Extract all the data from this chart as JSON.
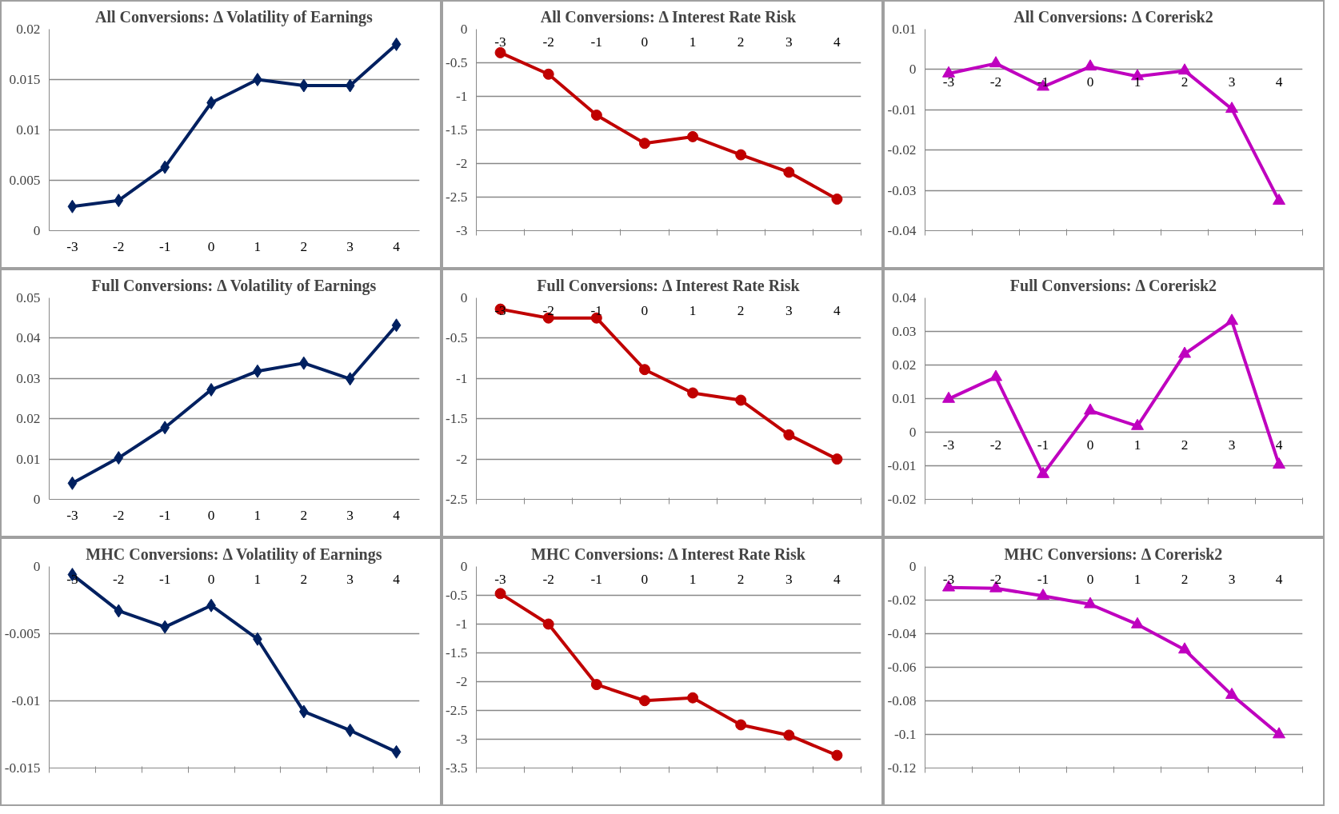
{
  "chart_data": [
    {
      "type": "line",
      "title": "All Conversions: Δ Volatility of Earnings",
      "categories": [
        "-3",
        "-2",
        "-1",
        "0",
        "1",
        "2",
        "3",
        "4"
      ],
      "series": [
        {
          "color": "#002060",
          "values": [
            0.0024,
            0.003,
            0.0063,
            0.0127,
            0.015,
            0.0144,
            0.0144,
            0.0185
          ]
        }
      ],
      "ylim": [
        0,
        0.02
      ],
      "yticks": [
        0,
        0.005,
        0.01,
        0.015,
        0.02
      ],
      "grid": "y",
      "marker": "diamond"
    },
    {
      "type": "line",
      "title": "All Conversions: Δ Interest Rate Risk",
      "categories": [
        "-3",
        "-2",
        "-1",
        "0",
        "1",
        "2",
        "3",
        "4"
      ],
      "series": [
        {
          "color": "#c00000",
          "values": [
            -0.35,
            -0.67,
            -1.28,
            -1.7,
            -1.6,
            -1.87,
            -2.13,
            -2.53
          ]
        }
      ],
      "ylim": [
        -3,
        0
      ],
      "yticks": [
        -3,
        -2.5,
        -2,
        -1.5,
        -1,
        -0.5,
        0
      ],
      "grid": "y",
      "marker": "circle"
    },
    {
      "type": "line",
      "title": "All Conversions: Δ Corerisk2",
      "categories": [
        "-3",
        "-2",
        "-1",
        "0",
        "1",
        "2",
        "3",
        "4"
      ],
      "series": [
        {
          "color": "#bf00bf",
          "values": [
            -0.001,
            0.0015,
            -0.0043,
            0.0007,
            -0.0017,
            -0.0003,
            -0.0098,
            -0.0326
          ]
        }
      ],
      "ylim": [
        -0.04,
        0.01
      ],
      "yticks": [
        -0.04,
        -0.03,
        -0.02,
        -0.01,
        0,
        0.01
      ],
      "grid": "y",
      "marker": "triangle"
    },
    {
      "type": "line",
      "title": "Full Conversions: Δ Volatility of Earnings",
      "categories": [
        "-3",
        "-2",
        "-1",
        "0",
        "1",
        "2",
        "3",
        "4"
      ],
      "series": [
        {
          "color": "#002060",
          "values": [
            0.004,
            0.0103,
            0.0178,
            0.0272,
            0.0318,
            0.0338,
            0.0299,
            0.0432
          ]
        }
      ],
      "ylim": [
        0,
        0.05
      ],
      "yticks": [
        0,
        0.01,
        0.02,
        0.03,
        0.04,
        0.05
      ],
      "grid": "y",
      "marker": "diamond"
    },
    {
      "type": "line",
      "title": "Full Conversions: Δ Interest Rate Risk",
      "categories": [
        "-3",
        "-2",
        "-1",
        "0",
        "1",
        "2",
        "3",
        "4"
      ],
      "series": [
        {
          "color": "#c00000",
          "values": [
            -0.14,
            -0.25,
            -0.25,
            -0.89,
            -1.18,
            -1.27,
            -1.7,
            -2.0
          ]
        }
      ],
      "ylim": [
        -2.5,
        0
      ],
      "yticks": [
        -2.5,
        -2,
        -1.5,
        -1,
        -0.5,
        0
      ],
      "grid": "y",
      "marker": "circle"
    },
    {
      "type": "line",
      "title": "Full Conversions: Δ Corerisk2",
      "categories": [
        "-3",
        "-2",
        "-1",
        "0",
        "1",
        "2",
        "3",
        "4"
      ],
      "series": [
        {
          "color": "#bf00bf",
          "values": [
            0.0099,
            0.0164,
            -0.0125,
            0.0064,
            0.0018,
            0.0233,
            0.0331,
            -0.0097
          ]
        }
      ],
      "ylim": [
        -0.02,
        0.04
      ],
      "yticks": [
        -0.02,
        -0.01,
        0,
        0.01,
        0.02,
        0.03,
        0.04
      ],
      "grid": "y",
      "marker": "triangle"
    },
    {
      "type": "line",
      "title": "MHC Conversions: Δ Volatility of Earnings",
      "categories": [
        "-3",
        "-2",
        "-1",
        "0",
        "1",
        "2",
        "3",
        "4"
      ],
      "series": [
        {
          "color": "#002060",
          "values": [
            -0.0006,
            -0.0033,
            -0.0045,
            -0.0029,
            -0.0054,
            -0.0108,
            -0.0122,
            -0.0138
          ]
        }
      ],
      "ylim": [
        -0.015,
        0
      ],
      "yticks": [
        -0.015,
        -0.01,
        -0.005,
        0
      ],
      "grid": "y",
      "marker": "diamond"
    },
    {
      "type": "line",
      "title": "MHC Conversions: Δ Interest Rate Risk",
      "categories": [
        "-3",
        "-2",
        "-1",
        "0",
        "1",
        "2",
        "3",
        "4"
      ],
      "series": [
        {
          "color": "#c00000",
          "values": [
            -0.47,
            -1.0,
            -2.05,
            -2.33,
            -2.28,
            -2.75,
            -2.93,
            -3.28
          ]
        }
      ],
      "ylim": [
        -3.5,
        0
      ],
      "yticks": [
        -3.5,
        -3,
        -2.5,
        -2,
        -1.5,
        -1,
        -0.5,
        0
      ],
      "grid": "y",
      "marker": "circle"
    },
    {
      "type": "line",
      "title": "MHC Conversions: Δ Corerisk2",
      "categories": [
        "-3",
        "-2",
        "-1",
        "0",
        "1",
        "2",
        "3",
        "4"
      ],
      "series": [
        {
          "color": "#bf00bf",
          "values": [
            -0.0125,
            -0.013,
            -0.0175,
            -0.0225,
            -0.0345,
            -0.0495,
            -0.0765,
            -0.1
          ]
        }
      ],
      "ylim": [
        -0.12,
        0
      ],
      "yticks": [
        -0.12,
        -0.1,
        -0.08,
        -0.06,
        -0.04,
        -0.02,
        0
      ],
      "grid": "y",
      "marker": "triangle"
    }
  ]
}
